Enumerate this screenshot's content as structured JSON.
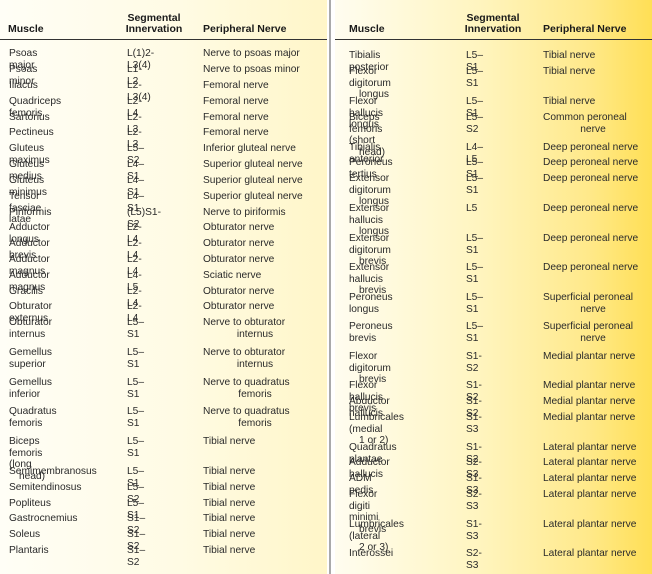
{
  "headers": {
    "muscle": "Muscle",
    "segmental_line1": "Segmental",
    "segmental_line2": "Innervation",
    "nerve": "Peripheral Nerve"
  },
  "left_rows": [
    {
      "m": "Psoas major",
      "m2": "",
      "s": "L(1)2-L3(4)",
      "n": "Nerve to psoas major",
      "n2": ""
    },
    {
      "m": "Psoas minor",
      "m2": "",
      "s": "L1-L2",
      "n": "Nerve to psoas minor",
      "n2": ""
    },
    {
      "m": "Iliacus",
      "m2": "",
      "s": "L2-L3(4)",
      "n": "Femoral nerve",
      "n2": ""
    },
    {
      "m": "Quadriceps femoris",
      "m2": "",
      "s": "L2-L4",
      "n": "Femoral nerve",
      "n2": ""
    },
    {
      "m": "Sartorius",
      "m2": "",
      "s": "L2-L3",
      "n": "Femoral nerve",
      "n2": ""
    },
    {
      "m": "Pectineus",
      "m2": "",
      "s": "L2-L3",
      "n": "Femoral nerve",
      "n2": ""
    },
    {
      "m": "Gluteus maximus",
      "m2": "",
      "s": "L5–S2",
      "n": "Inferior gluteal nerve",
      "n2": ""
    },
    {
      "m": "Gluteus medius",
      "m2": "",
      "s": "L4–S1",
      "n": "Superior gluteal nerve",
      "n2": ""
    },
    {
      "m": "Gluteus minimus",
      "m2": "",
      "s": "L4–S1",
      "n": "Superior gluteal nerve",
      "n2": ""
    },
    {
      "m": "Tensor fasciae latae",
      "m2": "",
      "s": "L4–S1",
      "n": "Superior gluteal nerve",
      "n2": ""
    },
    {
      "m": "Piriformis",
      "m2": "",
      "s": "(L5)S1-S2",
      "n": "Nerve to piriformis",
      "n2": ""
    },
    {
      "m": "Adductor longus",
      "m2": "",
      "s": "L2-L4",
      "n": "Obturator nerve",
      "n2": ""
    },
    {
      "m": "Adductor brevis",
      "m2": "",
      "s": "L2-L4",
      "n": "Obturator nerve",
      "n2": ""
    },
    {
      "m": "Adductor magnus",
      "m2": "",
      "s": "L2-L4",
      "n": "Obturator nerve",
      "n2": ""
    },
    {
      "m": "Adductor magnus",
      "m2": "",
      "s": "L4-L5",
      "n": "Sciatic nerve",
      "n2": ""
    },
    {
      "m": "Gracilis",
      "m2": "",
      "s": "L2-L4",
      "n": "Obturator nerve",
      "n2": ""
    },
    {
      "m": "Obturator externus",
      "m2": "",
      "s": "L2-L4",
      "n": "Obturator nerve",
      "n2": ""
    },
    {
      "m": "Obturator internus",
      "m2": "",
      "s": "L5–S1",
      "n": "Nerve to obturator",
      "n2": "internus"
    },
    {
      "m": "Gemellus superior",
      "m2": "",
      "s": "L5–S1",
      "n": "Nerve to obturator",
      "n2": "internus"
    },
    {
      "m": "Gemellus inferior",
      "m2": "",
      "s": "L5–S1",
      "n": "Nerve to quadratus",
      "n2": "femoris"
    },
    {
      "m": "Quadratus femoris",
      "m2": "",
      "s": "L5–S1",
      "n": "Nerve to quadratus",
      "n2": "femoris"
    },
    {
      "m": "Biceps femoris (long",
      "m2": "head)",
      "s": "L5–S1",
      "n": "Tibial nerve",
      "n2": ""
    },
    {
      "m": "Semimembranosus",
      "m2": "",
      "s": "L5–S1",
      "n": "Tibial nerve",
      "n2": ""
    },
    {
      "m": "Semitendinosus",
      "m2": "",
      "s": "L5–S2",
      "n": "Tibial nerve",
      "n2": ""
    },
    {
      "m": "Popliteus",
      "m2": "",
      "s": "L5–S1",
      "n": "Tibial nerve",
      "n2": ""
    },
    {
      "m": "Gastrocnemius",
      "m2": "",
      "s": "S1–S2",
      "n": "Tibial nerve",
      "n2": ""
    },
    {
      "m": "Soleus",
      "m2": "",
      "s": "S1–S2",
      "n": "Tibial nerve",
      "n2": ""
    },
    {
      "m": "Plantaris",
      "m2": "",
      "s": "S1–S2",
      "n": "Tibial nerve",
      "n2": ""
    }
  ],
  "right_rows": [
    {
      "m": "Tibialis posterior",
      "m2": "",
      "s": "L5–S1",
      "n": "Tibial nerve",
      "n2": ""
    },
    {
      "m": "Flexor digitorum",
      "m2": "longus",
      "s": "L5–S1",
      "n": "Tibial nerve",
      "n2": ""
    },
    {
      "m": "Flexor hallucis longus",
      "m2": "",
      "s": "L5–S1",
      "n": "Tibial nerve",
      "n2": ""
    },
    {
      "m": "Biceps femoris (short",
      "m2": "head)",
      "s": "L5–S2",
      "n": "Common peroneal",
      "n2": "nerve"
    },
    {
      "m": "Tibialis anterior",
      "m2": "",
      "s": "L4–L5",
      "n": "Deep peroneal nerve",
      "n2": ""
    },
    {
      "m": "Peroneus tertius",
      "m2": "",
      "s": "L5–S1",
      "n": "Deep peroneal nerve",
      "n2": ""
    },
    {
      "m": "Extensor digitorum",
      "m2": "longus",
      "s": "L5–S1",
      "n": "Deep peroneal nerve",
      "n2": ""
    },
    {
      "m": "Extensor hallucis",
      "m2": "longus",
      "s": "L5",
      "n": "Deep peroneal nerve",
      "n2": ""
    },
    {
      "m": "Extensor digitorum",
      "m2": "brevis",
      "s": "L5–S1",
      "n": "Deep peroneal nerve",
      "n2": ""
    },
    {
      "m": "Extensor hallucis",
      "m2": "brevis",
      "s": "L5–S1",
      "n": "Deep peroneal nerve",
      "n2": ""
    },
    {
      "m": "Peroneus longus",
      "m2": "",
      "s": "L5–S1",
      "n": "Superficial peroneal",
      "n2": "nerve"
    },
    {
      "m": "Peroneus brevis",
      "m2": "",
      "s": "L5–S1",
      "n": "Superficial peroneal",
      "n2": "nerve"
    },
    {
      "m": "Flexor digitorum",
      "m2": "brevis",
      "s": "S1-S2",
      "n": "Medial plantar nerve",
      "n2": ""
    },
    {
      "m": "Flexor hallucis brevis",
      "m2": "",
      "s": "S1-S2",
      "n": "Medial plantar nerve",
      "n2": ""
    },
    {
      "m": "Abductor hallucis",
      "m2": "",
      "s": "S1-S2",
      "n": "Medial plantar nerve",
      "n2": ""
    },
    {
      "m": "Lumbricales (medial",
      "m2": "1 or 2)",
      "s": "S1-S3",
      "n": "Medial plantar nerve",
      "n2": ""
    },
    {
      "m": "Quadratus plantae",
      "m2": "",
      "s": "S1-S2",
      "n": "Lateral plantar nerve",
      "n2": ""
    },
    {
      "m": "Adductor hallucis",
      "m2": "",
      "s": "S2-S3",
      "n": "Lateral plantar nerve",
      "n2": ""
    },
    {
      "m": "ADM pedis",
      "m2": "",
      "s": "S1-S3",
      "n": "Lateral plantar nerve",
      "n2": ""
    },
    {
      "m": "Flexor digiti minimi",
      "m2": "brevis",
      "s": "S2-S3",
      "n": "Lateral plantar nerve",
      "n2": ""
    },
    {
      "m": "Lumbricales (lateral",
      "m2": "2 or 3)",
      "s": "S1-S3",
      "n": "Lateral plantar nerve",
      "n2": ""
    },
    {
      "m": "Interossei",
      "m2": "",
      "s": "S2-S3",
      "n": "Lateral plantar nerve",
      "n2": ""
    }
  ]
}
